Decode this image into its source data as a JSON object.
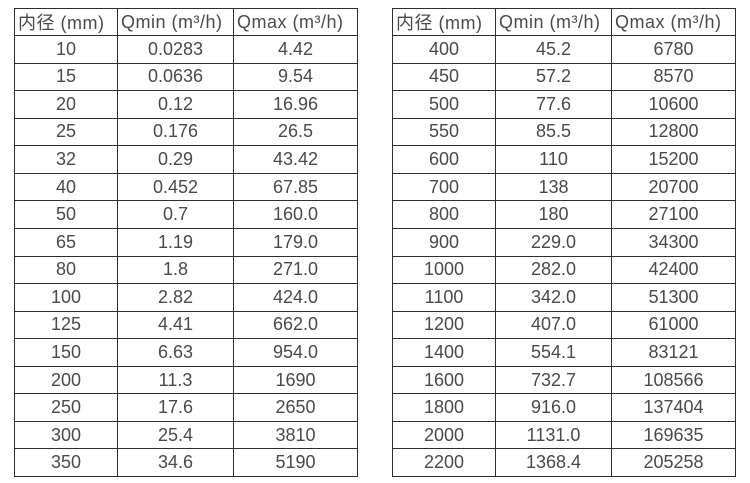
{
  "left_table": {
    "headers": [
      "内径 (mm)",
      "Qmin (m³/h)",
      "Qmax (m³/h)"
    ],
    "rows": [
      [
        "10",
        "0.0283",
        "4.42"
      ],
      [
        "15",
        "0.0636",
        "9.54"
      ],
      [
        "20",
        "0.12",
        "16.96"
      ],
      [
        "25",
        "0.176",
        "26.5"
      ],
      [
        "32",
        "0.29",
        "43.42"
      ],
      [
        "40",
        "0.452",
        "67.85"
      ],
      [
        "50",
        "0.7",
        "160.0"
      ],
      [
        "65",
        "1.19",
        "179.0"
      ],
      [
        "80",
        "1.8",
        "271.0"
      ],
      [
        "100",
        "2.82",
        "424.0"
      ],
      [
        "125",
        "4.41",
        "662.0"
      ],
      [
        "150",
        "6.63",
        "954.0"
      ],
      [
        "200",
        "11.3",
        "1690"
      ],
      [
        "250",
        "17.6",
        "2650"
      ],
      [
        "300",
        "25.4",
        "3810"
      ],
      [
        "350",
        "34.6",
        "5190"
      ]
    ]
  },
  "right_table": {
    "headers": [
      "内径 (mm)",
      "Qmin (m³/h)",
      "Qmax (m³/h)"
    ],
    "rows": [
      [
        "400",
        "45.2",
        "6780"
      ],
      [
        "450",
        "57.2",
        "8570"
      ],
      [
        "500",
        "77.6",
        "10600"
      ],
      [
        "550",
        "85.5",
        "12800"
      ],
      [
        "600",
        "110",
        "15200"
      ],
      [
        "700",
        "138",
        "20700"
      ],
      [
        "800",
        "180",
        "27100"
      ],
      [
        "900",
        "229.0",
        "34300"
      ],
      [
        "1000",
        "282.0",
        "42400"
      ],
      [
        "1100",
        "342.0",
        "51300"
      ],
      [
        "1200",
        "407.0",
        "61000"
      ],
      [
        "1400",
        "554.1",
        "83121"
      ],
      [
        "1600",
        "732.7",
        "108566"
      ],
      [
        "1800",
        "916.0",
        "137404"
      ],
      [
        "2000",
        "1131.0",
        "169635"
      ],
      [
        "2200",
        "1368.4",
        "205258"
      ]
    ]
  },
  "colors": {
    "border": "#2e2e2e",
    "text": "#4a4a4a",
    "background": "#ffffff"
  }
}
